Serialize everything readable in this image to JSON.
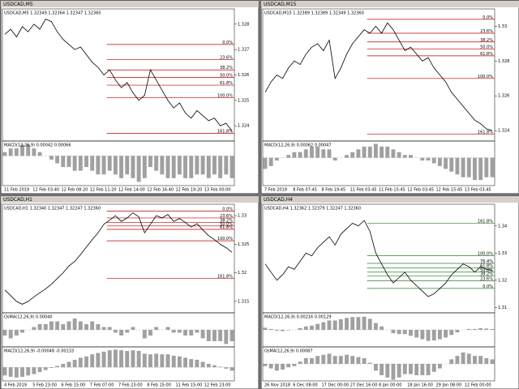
{
  "windows": [
    {
      "title": "USDCAD,M5",
      "info": "USDCAD,M5 1.32349 1.32364 1.32347 1.32360",
      "level_color": "#c00000",
      "ylim": [
        1.3234,
        1.3286
      ],
      "yticks": [
        1.324,
        1.325,
        1.326,
        1.327,
        1.328
      ],
      "values": [
        1.3276,
        1.3278,
        1.3275,
        1.3279,
        1.3277,
        1.328,
        1.3278,
        1.3282,
        1.3281,
        1.3277,
        1.3274,
        1.3272,
        1.327,
        1.3271,
        1.3268,
        1.3265,
        1.3263,
        1.326,
        1.3262,
        1.3258,
        1.3255,
        1.3257,
        1.3253,
        1.325,
        1.3252,
        1.3262,
        1.3258,
        1.3254,
        1.325,
        1.3247,
        1.3249,
        1.3245,
        1.3243,
        1.3246,
        1.3244,
        1.3242,
        1.3243,
        1.324,
        1.3241,
        1.3238
      ],
      "levels": [
        {
          "value": 1.3272,
          "label": "0.0%"
        },
        {
          "value": 1.3266,
          "label": "23.6%"
        },
        {
          "value": 1.3262,
          "label": "38.2%"
        },
        {
          "value": 1.3259,
          "label": "50.0%"
        },
        {
          "value": 1.3256,
          "label": "61.8%"
        },
        {
          "value": 1.3251,
          "label": "100.0%"
        },
        {
          "value": 1.3237,
          "label": "161.8%"
        }
      ],
      "panels": [
        {
          "label": "MACD(12,26,9) 0.00042 0.00066",
          "ylim": [
            -0.0008,
            0.0004
          ],
          "values": [
            0.0001,
            0.0002,
            0.0002,
            0.0003,
            0.0003,
            0.0002,
            0.0001,
            0,
            -0.0001,
            -0.0002,
            -0.0003,
            -0.0003,
            -0.0004,
            -0.0004,
            -0.0003,
            -0.0004,
            -0.0005,
            -0.0005,
            -0.0004,
            -0.0005,
            -0.0006,
            -0.0005,
            -0.0006,
            -0.0007,
            -0.0006,
            -0.0003,
            -0.0004,
            -0.0005,
            -0.0006,
            -0.0006,
            -0.0005,
            -0.0006,
            -0.0006,
            -0.0005,
            -0.0005,
            -0.0006,
            -0.0005,
            -0.0006,
            -0.0005,
            -0.0006
          ]
        }
      ],
      "xlabels": [
        "11 Feb 2019",
        "12 Feb 03:40",
        "12 Feb 08:20",
        "12 Feb 11:20",
        "12 Feb 14:00",
        "12 Feb 16:40",
        "12 Feb 19:20",
        "13 Feb 00:00"
      ]
    },
    {
      "title": "USDCAD,M15",
      "info": "USDCAD,M15 1.32389 1.32389 1.32349 1.32360",
      "level_color": "#c00000",
      "ylim": [
        1.3234,
        1.331
      ],
      "yticks": [
        1.324,
        1.326,
        1.328,
        1.33
      ],
      "values": [
        1.3262,
        1.3268,
        1.3272,
        1.327,
        1.3276,
        1.328,
        1.3278,
        1.3284,
        1.3288,
        1.329,
        1.3286,
        1.3292,
        1.327,
        1.3276,
        1.3284,
        1.329,
        1.3294,
        1.3298,
        1.3296,
        1.33,
        1.3296,
        1.3302,
        1.3298,
        1.3292,
        1.3286,
        1.3288,
        1.3284,
        1.328,
        1.3282,
        1.3276,
        1.3272,
        1.3268,
        1.3262,
        1.3258,
        1.3254,
        1.325,
        1.3246,
        1.3244,
        1.3241,
        1.324
      ],
      "levels": [
        {
          "value": 1.3304,
          "label": "0.0%"
        },
        {
          "value": 1.3296,
          "label": "23.6%"
        },
        {
          "value": 1.3291,
          "label": "38.2%"
        },
        {
          "value": 1.3287,
          "label": "50.0%"
        },
        {
          "value": 1.3283,
          "label": "61.8%"
        },
        {
          "value": 1.327,
          "label": "100.0%"
        },
        {
          "value": 1.3238,
          "label": "161.8%"
        }
      ],
      "panels": [
        {
          "label": "MACD(12,26,9) 0.00062 0.00047",
          "ylim": [
            -0.001,
            0.0006
          ],
          "values": [
            -0.0004,
            -0.0003,
            -0.0001,
            0,
            0.0001,
            0.0002,
            0.0002,
            0.0003,
            0.0004,
            0.0004,
            0.0003,
            0.0003,
            -0.0001,
            0,
            0.0001,
            0.0002,
            0.0003,
            0.0004,
            0.0004,
            0.0005,
            0.0004,
            0.0004,
            0.0003,
            0.0002,
            0.0001,
            0.0001,
            0,
            -0.0001,
            -0.0001,
            -0.0002,
            -0.0003,
            -0.0004,
            -0.0005,
            -0.0006,
            -0.0007,
            -0.0007,
            -0.0008,
            -0.0008,
            -0.0007,
            -0.0007
          ]
        }
      ],
      "xlabels": [
        "7 Feb 2019",
        "8 Feb 07:45",
        "8 Feb 19:45",
        "11 Feb 03:45",
        "11 Feb 15:45",
        "12 Feb 03:45",
        "12 Feb 15:45",
        "13 Feb 03:45"
      ]
    },
    {
      "title": "USDCAD,H1",
      "info": "USDCAD,H1 1.32340 1.32347 1.32247 1.32360",
      "level_color": "#c00000",
      "ylim": [
        1.313,
        1.332
      ],
      "yticks": [
        1.315,
        1.32,
        1.325,
        1.33
      ],
      "values": [
        1.317,
        1.316,
        1.315,
        1.3145,
        1.315,
        1.3158,
        1.3165,
        1.3172,
        1.318,
        1.319,
        1.32,
        1.3212,
        1.322,
        1.3232,
        1.3245,
        1.3258,
        1.327,
        1.3285,
        1.3292,
        1.33,
        1.329,
        1.3296,
        1.3305,
        1.3298,
        1.327,
        1.3285,
        1.33,
        1.3296,
        1.3302,
        1.329,
        1.3295,
        1.3288,
        1.328,
        1.3286,
        1.3275,
        1.3265,
        1.3258,
        1.325,
        1.3244,
        1.3236
      ],
      "levels": [
        {
          "value": 1.3308,
          "label": "0.0%"
        },
        {
          "value": 1.3296,
          "label": "23.6%"
        },
        {
          "value": 1.3288,
          "label": "38.2%"
        },
        {
          "value": 1.3282,
          "label": "50.0%"
        },
        {
          "value": 1.3276,
          "label": "61.8%"
        },
        {
          "value": 1.3256,
          "label": "100.0%"
        },
        {
          "value": 1.319,
          "label": "161.8%"
        }
      ],
      "panels": [
        {
          "label": "OsMA(12,26,9) 0.00040",
          "ylim": [
            -0.0006,
            0.0006
          ],
          "values": [
            -0.0002,
            -0.0003,
            -0.0002,
            -0.0001,
            0,
            0.0001,
            0.0002,
            0.0002,
            0.0003,
            0.0003,
            0.0002,
            0.0003,
            0.0004,
            0.0003,
            0.0002,
            0.0003,
            0.0002,
            0.0001,
            0.0001,
            -0.0001,
            -0.0002,
            -0.0001,
            0.0001,
            0,
            -0.0003,
            -0.0002,
            0.0001,
            0,
            0.0001,
            -0.0001,
            -0.0001,
            -0.0002,
            -0.0002,
            -0.0001,
            -0.0003,
            -0.0004,
            -0.0004,
            -0.0004,
            -0.0005,
            -0.0004
          ]
        },
        {
          "label": "MACD(12,26,9) -0.00048 -0.00133",
          "ylim": [
            -0.002,
            0.003
          ],
          "values": [
            -0.0012,
            -0.0014,
            -0.0015,
            -0.0014,
            -0.0012,
            -0.001,
            -0.0007,
            -0.0004,
            -0.0001,
            0.0002,
            0.0005,
            0.0008,
            0.0011,
            0.0014,
            0.0016,
            0.0019,
            0.0021,
            0.0023,
            0.0025,
            0.0026,
            0.0025,
            0.0024,
            0.0025,
            0.0024,
            0.002,
            0.0019,
            0.002,
            0.0019,
            0.0019,
            0.0017,
            0.0016,
            0.0014,
            0.0012,
            0.0011,
            0.0008,
            0.0005,
            0.0003,
            0.0001,
            -0.0002,
            -0.0005
          ]
        }
      ],
      "xlabels": [
        "4 Feb 2019",
        "5 Feb 23:00",
        "6 Feb 15:00",
        "7 Feb 07:00",
        "7 Feb 23:00",
        "8 Feb 15:00",
        "11 Feb 15:00",
        "12 Feb 23:00"
      ]
    },
    {
      "title": "USDCAD,H4",
      "info": "USDCAD,H4 1.32362 1.32379 1.32247 1.32360",
      "level_color": "#2e7d32",
      "ylim": [
        1.308,
        1.348
      ],
      "yticks": [
        1.31,
        1.32,
        1.33,
        1.34
      ],
      "values": [
        1.326,
        1.323,
        1.32,
        1.322,
        1.325,
        1.324,
        1.327,
        1.33,
        1.329,
        1.332,
        1.334,
        1.336,
        1.333,
        1.337,
        1.339,
        1.341,
        1.34,
        1.342,
        1.338,
        1.33,
        1.326,
        1.322,
        1.319,
        1.321,
        1.323,
        1.32,
        1.318,
        1.316,
        1.314,
        1.315,
        1.317,
        1.319,
        1.322,
        1.324,
        1.326,
        1.325,
        1.323,
        1.325,
        1.324,
        1.3236
      ],
      "levels": [
        {
          "value": 1.341,
          "label": "161.8%"
        },
        {
          "value": 1.329,
          "label": "100.0%"
        },
        {
          "value": 1.3262,
          "label": "76.4%"
        },
        {
          "value": 1.3245,
          "label": "61.8%"
        },
        {
          "value": 1.323,
          "label": "50.0%"
        },
        {
          "value": 1.3216,
          "label": "38.2%"
        },
        {
          "value": 1.3198,
          "label": "23.6%"
        },
        {
          "value": 1.317,
          "label": "0.0%"
        }
      ],
      "panels": [
        {
          "label": "MACD(12,26,9) 0.00216 0.00129",
          "ylim": [
            -0.004,
            0.004
          ],
          "values": [
            0.0005,
            0.0002,
            -0.0002,
            -0.0003,
            -0.0001,
            0,
            0.0004,
            0.0008,
            0.001,
            0.0014,
            0.0018,
            0.0022,
            0.0022,
            0.0025,
            0.0028,
            0.003,
            0.003,
            0.0031,
            0.0026,
            0.0016,
            0.0008,
            0,
            -0.0008,
            -0.001,
            -0.001,
            -0.0014,
            -0.0018,
            -0.0022,
            -0.0026,
            -0.0025,
            -0.0022,
            -0.0018,
            -0.0012,
            -0.0006,
            0,
            0.0002,
            0.0002,
            0.0004,
            0.0003,
            0.0002
          ]
        },
        {
          "label": "OsMA(12,26,9) 0.00087",
          "ylim": [
            -0.0015,
            0.0015
          ],
          "values": [
            -0.0002,
            -0.0004,
            -0.0006,
            -0.0005,
            -0.0003,
            -0.0002,
            0.0002,
            0.0005,
            0.0005,
            0.0007,
            0.0008,
            0.0009,
            0.0007,
            0.0007,
            0.0008,
            0.0007,
            0.0006,
            0.0005,
            0.0001,
            -0.0006,
            -0.001,
            -0.0012,
            -0.0014,
            -0.0012,
            -0.0009,
            -0.0009,
            -0.001,
            -0.001,
            -0.001,
            -0.0007,
            -0.0004,
            0,
            0.0004,
            0.0007,
            0.001,
            0.0009,
            0.0007,
            0.0007,
            0.0005,
            0.0004
          ]
        }
      ],
      "xlabels": [
        "26 Nov 2018",
        "6 Dec 08:00",
        "17 Dec 00:00",
        "27 Dec 16:00",
        "8 Jan 00:00",
        "18 Jan 16:00",
        "29 Jan 08:00",
        "12 Feb 00:00"
      ]
    }
  ]
}
